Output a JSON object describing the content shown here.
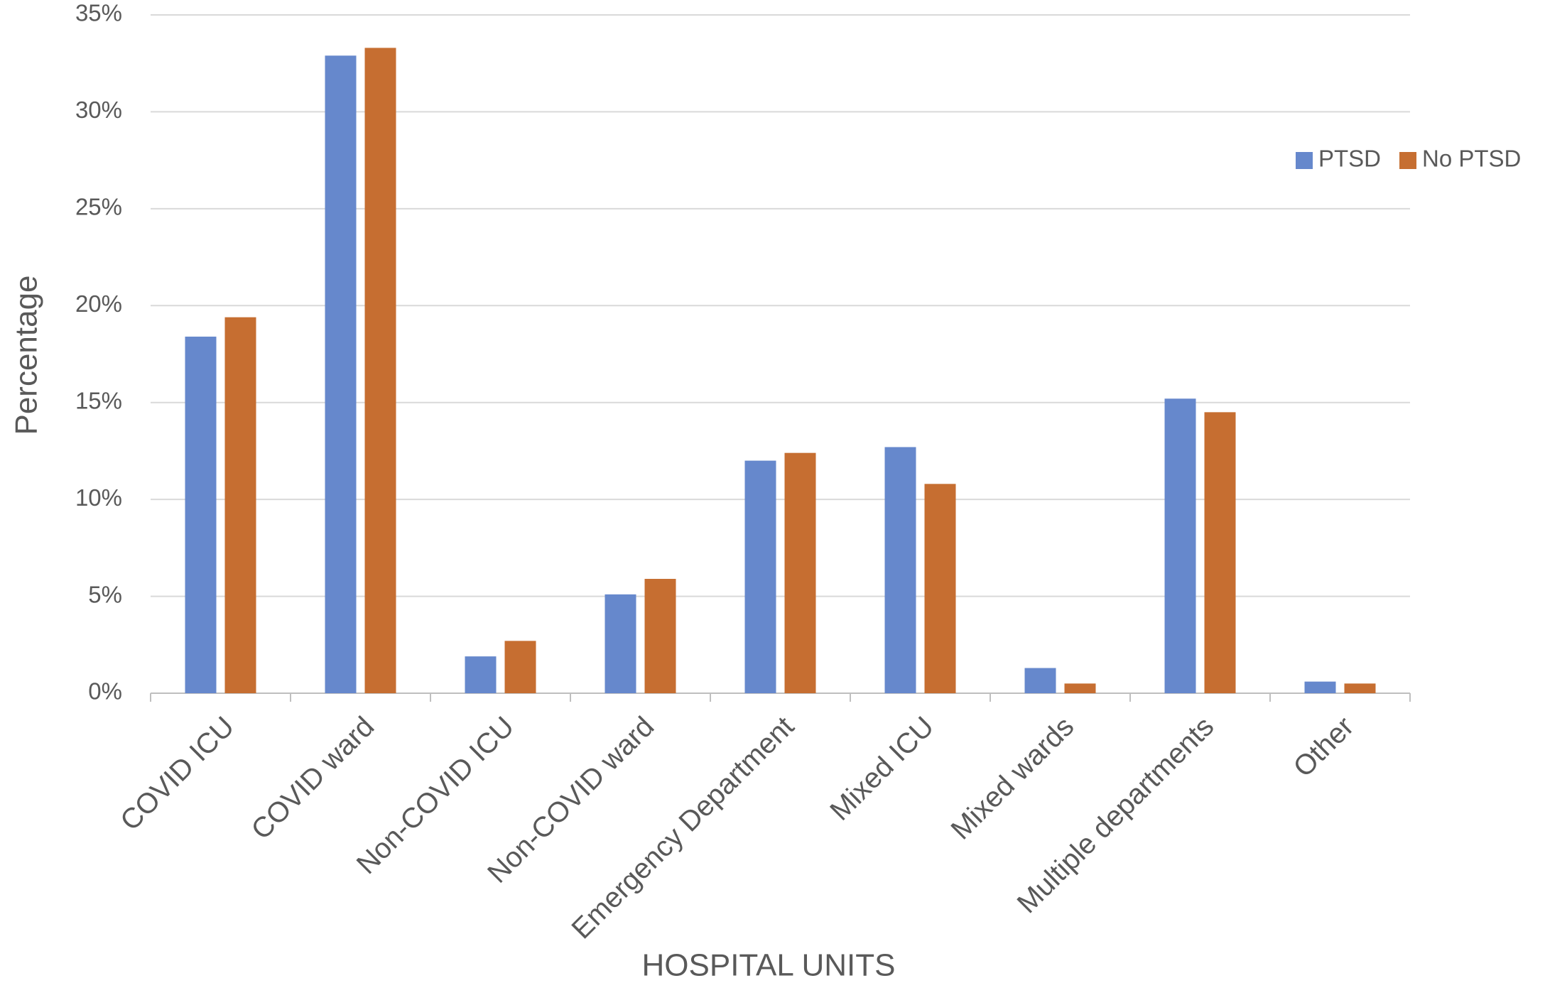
{
  "chart_data": {
    "type": "bar",
    "y_label": "Percentage",
    "x_label": "HOSPITAL UNITS",
    "categories": [
      "COVID ICU",
      "COVID ward",
      "Non-COVID ICU",
      "Non-COVID ward",
      "Emergency Department",
      "Mixed ICU",
      "Mixed wards",
      "Multiple departments",
      "Other"
    ],
    "series": [
      {
        "name": "PTSD",
        "color": "#6688cc",
        "values": [
          18.4,
          32.9,
          1.9,
          5.1,
          12.0,
          12.7,
          1.3,
          15.2,
          0.6
        ]
      },
      {
        "name": "No PTSD",
        "color": "#c66e31",
        "values": [
          19.4,
          33.3,
          2.7,
          5.9,
          12.4,
          10.8,
          0.5,
          14.5,
          0.5
        ]
      }
    ],
    "ylim": [
      0,
      35
    ],
    "yticks": [
      {
        "value": 0,
        "label": "0%"
      },
      {
        "value": 5,
        "label": "5%"
      },
      {
        "value": 10,
        "label": "10%"
      },
      {
        "value": 15,
        "label": "15%"
      },
      {
        "value": 20,
        "label": "20%"
      },
      {
        "value": 25,
        "label": "25%"
      },
      {
        "value": 30,
        "label": "30%"
      },
      {
        "value": 35,
        "label": "35%"
      }
    ],
    "grid": true,
    "legend": "right"
  }
}
